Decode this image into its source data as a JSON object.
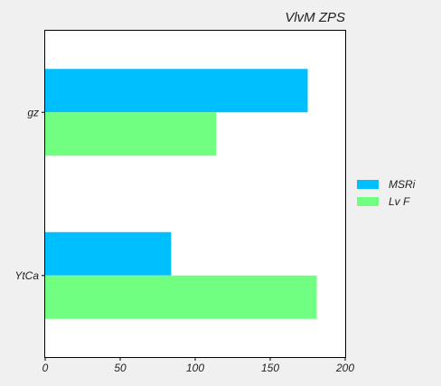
{
  "chart_data": {
    "type": "bar",
    "orientation": "horizontal",
    "title": "VlvM ZPS",
    "xlabel": "",
    "ylabel": "",
    "categories": [
      "gz",
      "YtCa"
    ],
    "series": [
      {
        "name": "MSRi",
        "color": "#00bfff",
        "values": [
          175,
          84
        ]
      },
      {
        "name": "Lv F",
        "color": "#70ff80",
        "values": [
          114,
          181
        ]
      }
    ],
    "xlim": [
      0,
      200
    ],
    "xticks": [
      0,
      50,
      100,
      150,
      200
    ],
    "grid": false,
    "legend_position": "right"
  }
}
